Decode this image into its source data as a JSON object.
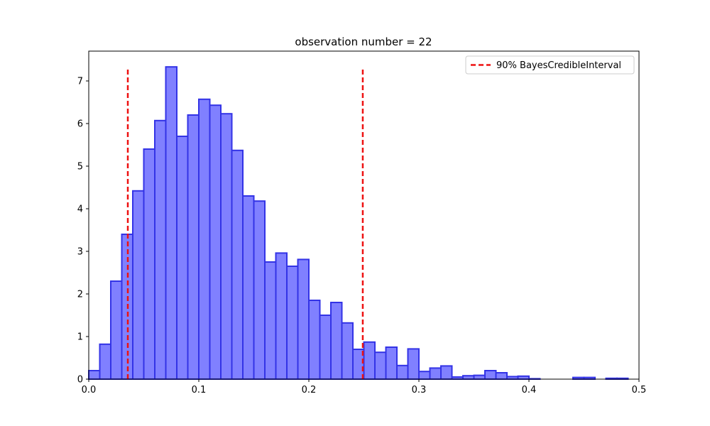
{
  "chart_data": {
    "type": "bar",
    "title": "observation number = 22",
    "xlabel": "",
    "ylabel": "",
    "xlim": [
      0,
      0.5
    ],
    "ylim": [
      0,
      7.7
    ],
    "x_ticks": [
      0.0,
      0.1,
      0.2,
      0.3,
      0.4,
      0.5
    ],
    "x_tick_labels": [
      "0.0",
      "0.1",
      "0.2",
      "0.3",
      "0.4",
      "0.5"
    ],
    "y_ticks": [
      0,
      1,
      2,
      3,
      4,
      5,
      6,
      7
    ],
    "y_tick_labels": [
      "0",
      "1",
      "2",
      "3",
      "4",
      "5",
      "6",
      "7"
    ],
    "grid": false,
    "legend_position": "top-right",
    "bins": {
      "start": 0.0,
      "width": 0.01,
      "values": [
        0.2,
        0.82,
        2.3,
        3.4,
        4.42,
        5.4,
        6.07,
        7.33,
        5.7,
        6.2,
        6.57,
        6.43,
        6.23,
        5.37,
        4.3,
        4.18,
        2.75,
        2.96,
        2.65,
        2.81,
        1.85,
        1.5,
        1.8,
        1.32,
        0.7,
        0.87,
        0.63,
        0.75,
        0.32,
        0.71,
        0.18,
        0.26,
        0.31,
        0.05,
        0.08,
        0.09,
        0.2,
        0.15,
        0.06,
        0.07,
        0.01,
        0.0,
        0.0,
        0.0,
        0.04,
        0.04,
        0.0,
        0.02,
        0.02
      ]
    },
    "credible_interval": {
      "label": "90% BayesCredibleInterval",
      "lower": 0.0355,
      "upper": 0.249,
      "y_top": 7.3
    },
    "colors": {
      "bar_fill": "#8080ff",
      "bar_edge": "#3333e6",
      "interval_line": "#ee1111",
      "axes": "#000000"
    }
  }
}
